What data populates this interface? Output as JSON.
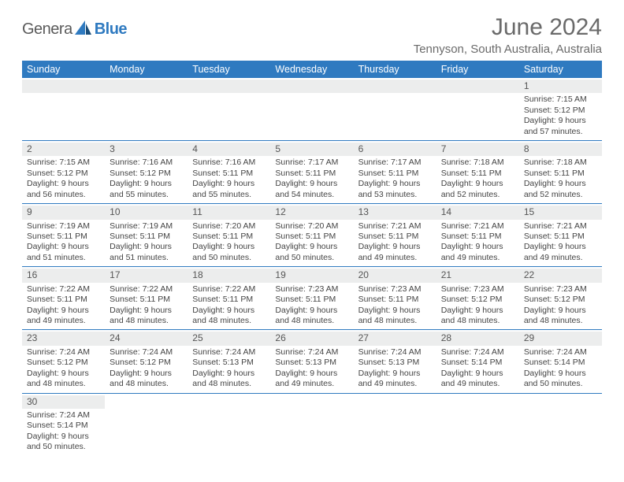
{
  "logo": {
    "brand_a": "Genera",
    "brand_b": "Blue"
  },
  "title": "June 2024",
  "location": "Tennyson, South Australia, Australia",
  "colors": {
    "header_bg": "#2f7ac0",
    "header_fg": "#ffffff",
    "daynum_bg": "#eceded",
    "cell_border": "#2f7ac0",
    "text": "#444444",
    "title_color": "#6a6a6a"
  },
  "weekdays": [
    "Sunday",
    "Monday",
    "Tuesday",
    "Wednesday",
    "Thursday",
    "Friday",
    "Saturday"
  ],
  "labels": {
    "sunrise": "Sunrise:",
    "sunset": "Sunset:",
    "daylight": "Daylight:"
  },
  "weeks": [
    [
      null,
      null,
      null,
      null,
      null,
      null,
      {
        "d": "1",
        "sr": "7:15 AM",
        "ss": "5:12 PM",
        "dl": "9 hours and 57 minutes."
      }
    ],
    [
      {
        "d": "2",
        "sr": "7:15 AM",
        "ss": "5:12 PM",
        "dl": "9 hours and 56 minutes."
      },
      {
        "d": "3",
        "sr": "7:16 AM",
        "ss": "5:12 PM",
        "dl": "9 hours and 55 minutes."
      },
      {
        "d": "4",
        "sr": "7:16 AM",
        "ss": "5:11 PM",
        "dl": "9 hours and 55 minutes."
      },
      {
        "d": "5",
        "sr": "7:17 AM",
        "ss": "5:11 PM",
        "dl": "9 hours and 54 minutes."
      },
      {
        "d": "6",
        "sr": "7:17 AM",
        "ss": "5:11 PM",
        "dl": "9 hours and 53 minutes."
      },
      {
        "d": "7",
        "sr": "7:18 AM",
        "ss": "5:11 PM",
        "dl": "9 hours and 52 minutes."
      },
      {
        "d": "8",
        "sr": "7:18 AM",
        "ss": "5:11 PM",
        "dl": "9 hours and 52 minutes."
      }
    ],
    [
      {
        "d": "9",
        "sr": "7:19 AM",
        "ss": "5:11 PM",
        "dl": "9 hours and 51 minutes."
      },
      {
        "d": "10",
        "sr": "7:19 AM",
        "ss": "5:11 PM",
        "dl": "9 hours and 51 minutes."
      },
      {
        "d": "11",
        "sr": "7:20 AM",
        "ss": "5:11 PM",
        "dl": "9 hours and 50 minutes."
      },
      {
        "d": "12",
        "sr": "7:20 AM",
        "ss": "5:11 PM",
        "dl": "9 hours and 50 minutes."
      },
      {
        "d": "13",
        "sr": "7:21 AM",
        "ss": "5:11 PM",
        "dl": "9 hours and 49 minutes."
      },
      {
        "d": "14",
        "sr": "7:21 AM",
        "ss": "5:11 PM",
        "dl": "9 hours and 49 minutes."
      },
      {
        "d": "15",
        "sr": "7:21 AM",
        "ss": "5:11 PM",
        "dl": "9 hours and 49 minutes."
      }
    ],
    [
      {
        "d": "16",
        "sr": "7:22 AM",
        "ss": "5:11 PM",
        "dl": "9 hours and 49 minutes."
      },
      {
        "d": "17",
        "sr": "7:22 AM",
        "ss": "5:11 PM",
        "dl": "9 hours and 48 minutes."
      },
      {
        "d": "18",
        "sr": "7:22 AM",
        "ss": "5:11 PM",
        "dl": "9 hours and 48 minutes."
      },
      {
        "d": "19",
        "sr": "7:23 AM",
        "ss": "5:11 PM",
        "dl": "9 hours and 48 minutes."
      },
      {
        "d": "20",
        "sr": "7:23 AM",
        "ss": "5:11 PM",
        "dl": "9 hours and 48 minutes."
      },
      {
        "d": "21",
        "sr": "7:23 AM",
        "ss": "5:12 PM",
        "dl": "9 hours and 48 minutes."
      },
      {
        "d": "22",
        "sr": "7:23 AM",
        "ss": "5:12 PM",
        "dl": "9 hours and 48 minutes."
      }
    ],
    [
      {
        "d": "23",
        "sr": "7:24 AM",
        "ss": "5:12 PM",
        "dl": "9 hours and 48 minutes."
      },
      {
        "d": "24",
        "sr": "7:24 AM",
        "ss": "5:12 PM",
        "dl": "9 hours and 48 minutes."
      },
      {
        "d": "25",
        "sr": "7:24 AM",
        "ss": "5:13 PM",
        "dl": "9 hours and 48 minutes."
      },
      {
        "d": "26",
        "sr": "7:24 AM",
        "ss": "5:13 PM",
        "dl": "9 hours and 49 minutes."
      },
      {
        "d": "27",
        "sr": "7:24 AM",
        "ss": "5:13 PM",
        "dl": "9 hours and 49 minutes."
      },
      {
        "d": "28",
        "sr": "7:24 AM",
        "ss": "5:14 PM",
        "dl": "9 hours and 49 minutes."
      },
      {
        "d": "29",
        "sr": "7:24 AM",
        "ss": "5:14 PM",
        "dl": "9 hours and 50 minutes."
      }
    ],
    [
      {
        "d": "30",
        "sr": "7:24 AM",
        "ss": "5:14 PM",
        "dl": "9 hours and 50 minutes."
      },
      null,
      null,
      null,
      null,
      null,
      null
    ]
  ]
}
